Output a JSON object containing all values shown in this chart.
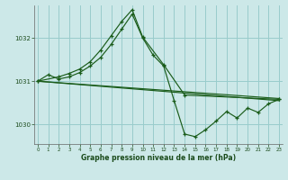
{
  "xlabel": "Graphe pression niveau de la mer (hPa)",
  "x_ticks": [
    0,
    1,
    2,
    3,
    4,
    5,
    6,
    7,
    8,
    9,
    10,
    11,
    12,
    13,
    14,
    15,
    16,
    17,
    18,
    19,
    20,
    21,
    22,
    23
  ],
  "xlim": [
    -0.3,
    23.3
  ],
  "ylim": [
    1029.55,
    1032.75
  ],
  "yticks": [
    1030,
    1031,
    1032
  ],
  "background_color": "#cce8e8",
  "grid_color": "#99cccc",
  "line_color": "#1a5c1a",
  "line1_x": [
    0,
    1,
    2,
    3,
    4,
    5,
    6,
    7,
    8,
    9,
    10,
    11,
    12,
    13,
    14,
    15,
    16,
    17,
    18,
    19,
    20,
    21,
    22,
    23
  ],
  "line1_y": [
    1031.0,
    1031.15,
    1031.05,
    1031.1,
    1031.2,
    1031.35,
    1031.55,
    1031.85,
    1032.2,
    1032.55,
    1032.0,
    1031.6,
    1031.35,
    1030.55,
    1029.78,
    1029.72,
    1029.88,
    1030.08,
    1030.3,
    1030.15,
    1030.38,
    1030.28,
    1030.48,
    1030.58
  ],
  "line2_x": [
    0,
    2,
    3,
    4,
    5,
    6,
    7,
    8,
    9,
    10,
    12,
    14,
    23
  ],
  "line2_y": [
    1031.0,
    1031.1,
    1031.18,
    1031.28,
    1031.45,
    1031.72,
    1032.05,
    1032.38,
    1032.65,
    1032.02,
    1031.38,
    1030.68,
    1030.58
  ],
  "line3_x": [
    0,
    23
  ],
  "line3_y": [
    1031.0,
    1030.55
  ],
  "line4_x": [
    0,
    23
  ],
  "line4_y": [
    1031.0,
    1030.6
  ]
}
